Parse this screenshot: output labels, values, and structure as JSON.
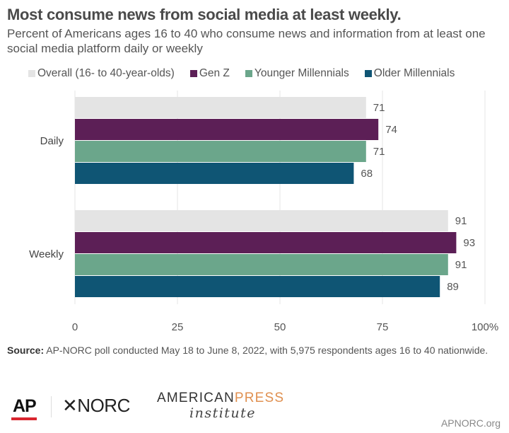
{
  "chart_data": {
    "type": "bar",
    "orientation": "horizontal",
    "title": "Most consume news from social media at least weekly.",
    "subtitle": "Percent of Americans ages 16 to 40 who consume news and information from at least one social media platform daily or weekly",
    "categories": [
      "Daily",
      "Weekly"
    ],
    "series": [
      {
        "name": "Overall (16- to 40-year-olds)",
        "color": "#e4e4e4",
        "values": [
          71,
          91
        ]
      },
      {
        "name": "Gen Z",
        "color": "#5c1f56",
        "values": [
          74,
          93
        ]
      },
      {
        "name": "Younger Millennials",
        "color": "#6ba68b",
        "values": [
          71,
          91
        ]
      },
      {
        "name": "Older Millennials",
        "color": "#0f5574",
        "values": [
          68,
          89
        ]
      }
    ],
    "xlim": [
      0,
      100
    ],
    "xticks": [
      "0",
      "25",
      "50",
      "75",
      "100%"
    ],
    "xtick_values": [
      0,
      25,
      50,
      75,
      100
    ],
    "grid": true,
    "legend": "top"
  },
  "source_label": "Source:",
  "source_text": " AP-NORC poll conducted May 18 to June 8, 2022, with 5,975 respondents ages 16 to 40 nationwide.",
  "logos": {
    "ap": "AP",
    "norc": "NORC",
    "api_1": "AMERICAN",
    "api_2": "PRESS",
    "api_3": "institute"
  },
  "url": "APNORC.org"
}
